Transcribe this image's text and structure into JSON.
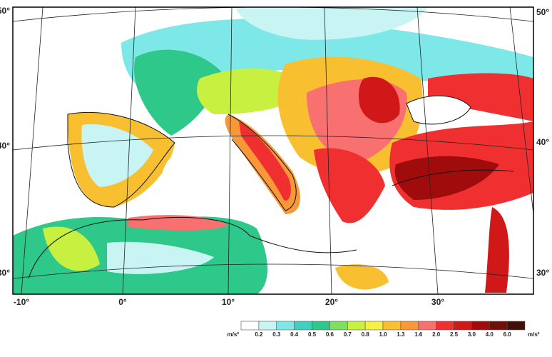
{
  "map": {
    "lon_labels": [
      "-10°",
      "0°",
      "10°",
      "20°",
      "30°"
    ],
    "lat_labels": [
      "50°",
      "40°",
      "30°"
    ],
    "legend": {
      "unit": "m/s²",
      "labels": [
        "0.2",
        "0.3",
        "0.4",
        "0.5",
        "0.6",
        "0.7",
        "0.8",
        "1.0",
        "1.3",
        "1.6",
        "2.0",
        "2.5",
        "3.0",
        "4.0",
        "6.0"
      ],
      "colors": [
        "#ffffff",
        "#c8f4f4",
        "#7ee8e8",
        "#3fd0c0",
        "#2ec88a",
        "#7fe060",
        "#c8f040",
        "#f8f040",
        "#f8c030",
        "#f89838",
        "#f87070",
        "#f03030",
        "#d01818",
        "#a00c0c",
        "#701008",
        "#401008"
      ]
    }
  }
}
